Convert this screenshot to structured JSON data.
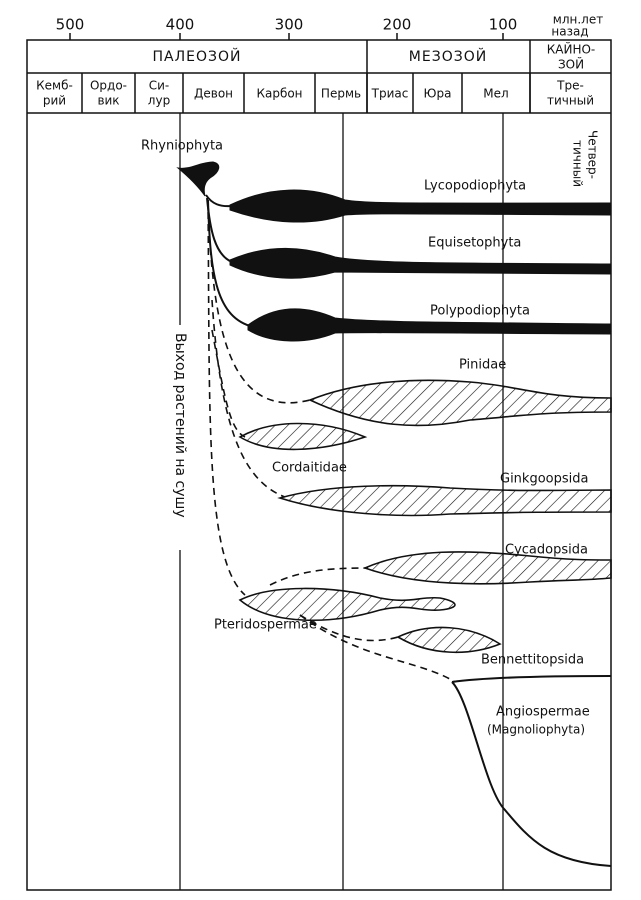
{
  "axis": {
    "ticks": [
      "500",
      "400",
      "300",
      "200",
      "100"
    ],
    "unit_label": [
      "млн.лет",
      "назад"
    ]
  },
  "eras": [
    [
      "ПАЛЕОЗОЙ"
    ],
    [
      "МЕЗОЗОЙ"
    ],
    [
      "КАЙНО-",
      "ЗОЙ"
    ]
  ],
  "periods": [
    [
      "Кемб-",
      "рий"
    ],
    [
      "Ордо-",
      "вик"
    ],
    [
      "Си-",
      "лур"
    ],
    [
      "Девон"
    ],
    [
      "Карбон"
    ],
    [
      "Пермь"
    ],
    [
      "Триас"
    ],
    [
      "Юра"
    ],
    [
      "Мел"
    ],
    [
      "Тре-",
      "тичный"
    ]
  ],
  "quaternary": [
    "Четвер-",
    "тичный"
  ],
  "annotation": "Выход растений на сушу",
  "taxa": [
    "Rhyniophyta",
    "Lycopodiophyta",
    "Equisetophyta",
    "Polypodiophyta",
    "Pinidae",
    "Cordaitidae",
    "Ginkgoopsida",
    "Cycadopsida",
    "Pteridospermae",
    "Bennettitopsida",
    "Angiospermae",
    "(Magnoliophyta)"
  ]
}
